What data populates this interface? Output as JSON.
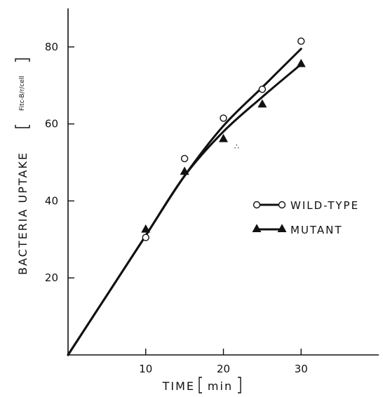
{
  "chart_data": {
    "type": "line",
    "xlabel": "TIME",
    "xunit": "min",
    "ylabel": "BACTERIA UPTAKE",
    "yunit": "Fitc-B/r/cell",
    "xlim": [
      0,
      40
    ],
    "ylim": [
      0,
      90
    ],
    "xticks": [
      10,
      20,
      30
    ],
    "yticks": [
      20,
      40,
      60,
      80
    ],
    "grid": false,
    "legend_position": "right",
    "series": [
      {
        "name": "WILD-TYPE",
        "marker": "open-circle",
        "points": [
          [
            10,
            30.5
          ],
          [
            15,
            51
          ],
          [
            20,
            61.5
          ],
          [
            25,
            69
          ],
          [
            30,
            81.5
          ]
        ],
        "fit": [
          [
            0,
            0
          ],
          [
            5,
            15.5
          ],
          [
            10,
            31
          ],
          [
            15,
            46.5
          ],
          [
            20,
            59.5
          ],
          [
            25,
            69.5
          ],
          [
            30,
            79.5
          ]
        ]
      },
      {
        "name": "MUTANT",
        "marker": "filled-triangle",
        "points": [
          [
            10,
            32.5
          ],
          [
            15,
            47.5
          ],
          [
            20,
            56
          ],
          [
            25,
            65
          ],
          [
            30,
            75.5
          ]
        ],
        "fit": [
          [
            0,
            0
          ],
          [
            5,
            15.5
          ],
          [
            10,
            31
          ],
          [
            15,
            46.5
          ],
          [
            20,
            58
          ],
          [
            25,
            67
          ],
          [
            30,
            75.5
          ]
        ]
      }
    ],
    "annotations": [
      "∴"
    ]
  }
}
